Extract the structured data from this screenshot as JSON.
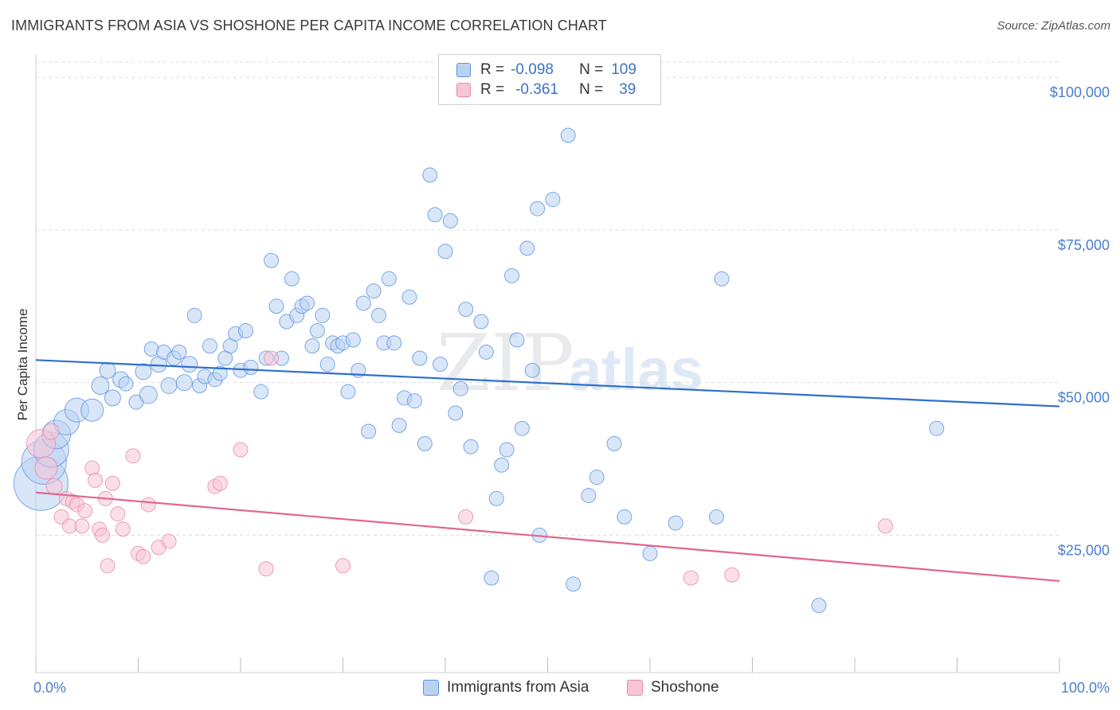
{
  "title": "IMMIGRANTS FROM ASIA VS SHOSHONE PER CAPITA INCOME CORRELATION CHART",
  "source": "Source: ZipAtlas.com",
  "watermark": {
    "zip": "ZIP",
    "atlas": "atlas"
  },
  "colors": {
    "blue": "#5b93e0",
    "blue_fill": "#b9d2f3",
    "blue_line": "#2e6fcc",
    "pink": "#e888a8",
    "pink_fill": "#f7c5d5",
    "pink_line": "#e0668f",
    "tick_text": "#4a7fd0"
  },
  "legend": {
    "rows": [
      {
        "r_label": "R =",
        "r_value": "-0.098",
        "n_label": "N =",
        "n_value": "109"
      },
      {
        "r_label": "R =",
        "r_value": "-0.361",
        "n_label": "N =",
        "n_value": "39"
      }
    ]
  },
  "bottom_legend": {
    "asia": "Immigrants from Asia",
    "shoshone": "Shoshone"
  },
  "chart_data": {
    "type": "scatter",
    "title": "IMMIGRANTS FROM ASIA VS SHOSHONE PER CAPITA INCOME CORRELATION CHART",
    "xlabel": "",
    "ylabel": "Per Capita Income",
    "xlim": [
      0,
      100
    ],
    "ylim": [
      2500,
      102500
    ],
    "x_tick_labels": [
      "0.0%",
      "100.0%"
    ],
    "y_ticks": [
      25000,
      50000,
      75000,
      100000
    ],
    "y_tick_labels": [
      "$25,000",
      "$50,000",
      "$75,000",
      "$100,000"
    ],
    "grid": true,
    "legend_position": "top-center",
    "series": [
      {
        "name": "Immigrants from Asia",
        "color": "#5b93e0",
        "trend": {
          "x": [
            0,
            100
          ],
          "y": [
            53700,
            46100
          ]
        },
        "points": [
          [
            0.5,
            33500,
            34
          ],
          [
            0.8,
            37000,
            28
          ],
          [
            1.5,
            39000,
            22
          ],
          [
            2.0,
            41500,
            18
          ],
          [
            3.0,
            43500,
            16
          ],
          [
            4.0,
            45500,
            15
          ],
          [
            5.5,
            45500,
            14
          ],
          [
            6.3,
            49500,
            11
          ],
          [
            7.0,
            52000,
            10
          ],
          [
            7.5,
            47500,
            10
          ],
          [
            8.3,
            50500,
            10
          ],
          [
            8.8,
            49800,
            9
          ],
          [
            9.8,
            46800,
            9
          ],
          [
            10.5,
            51800,
            10
          ],
          [
            11.0,
            48000,
            11
          ],
          [
            11.3,
            55500,
            9
          ],
          [
            12.0,
            53000,
            10
          ],
          [
            12.5,
            55000,
            9
          ],
          [
            13.0,
            49500,
            10
          ],
          [
            13.5,
            54000,
            9
          ],
          [
            14.0,
            55000,
            9
          ],
          [
            14.5,
            50000,
            10
          ],
          [
            15.0,
            53000,
            10
          ],
          [
            15.5,
            61000,
            9
          ],
          [
            16.0,
            49500,
            9
          ],
          [
            16.5,
            51000,
            9
          ],
          [
            17.0,
            56000,
            9
          ],
          [
            17.5,
            50500,
            9
          ],
          [
            18.0,
            51500,
            9
          ],
          [
            18.5,
            54000,
            9
          ],
          [
            19.0,
            56000,
            9
          ],
          [
            19.5,
            58000,
            9
          ],
          [
            20.0,
            52000,
            9
          ],
          [
            20.5,
            58500,
            9
          ],
          [
            21.0,
            52500,
            9
          ],
          [
            22.0,
            48500,
            9
          ],
          [
            22.5,
            54000,
            9
          ],
          [
            23.0,
            70000,
            9
          ],
          [
            23.5,
            62500,
            9
          ],
          [
            24.0,
            54000,
            9
          ],
          [
            24.5,
            60000,
            9
          ],
          [
            25.0,
            67000,
            9
          ],
          [
            25.5,
            61000,
            9
          ],
          [
            26.0,
            62500,
            9
          ],
          [
            26.5,
            63000,
            9
          ],
          [
            27.0,
            56000,
            9
          ],
          [
            27.5,
            58500,
            9
          ],
          [
            28.0,
            61000,
            9
          ],
          [
            28.5,
            53000,
            9
          ],
          [
            29.0,
            56500,
            9
          ],
          [
            29.5,
            56000,
            9
          ],
          [
            30.0,
            56500,
            9
          ],
          [
            30.5,
            48500,
            9
          ],
          [
            31.0,
            57000,
            9
          ],
          [
            31.5,
            52000,
            9
          ],
          [
            32.0,
            63000,
            9
          ],
          [
            32.5,
            42000,
            9
          ],
          [
            33.0,
            65000,
            9
          ],
          [
            33.5,
            61000,
            9
          ],
          [
            34.0,
            56500,
            9
          ],
          [
            34.5,
            67000,
            9
          ],
          [
            35.0,
            56500,
            9
          ],
          [
            35.5,
            43000,
            9
          ],
          [
            36.0,
            47500,
            9
          ],
          [
            36.5,
            64000,
            9
          ],
          [
            37.0,
            47000,
            9
          ],
          [
            37.5,
            54000,
            9
          ],
          [
            38.0,
            40000,
            9
          ],
          [
            38.5,
            84000,
            9
          ],
          [
            39.0,
            77500,
            9
          ],
          [
            39.5,
            53000,
            9
          ],
          [
            40.0,
            71500,
            9
          ],
          [
            40.5,
            76500,
            9
          ],
          [
            41.0,
            45000,
            9
          ],
          [
            41.5,
            49000,
            9
          ],
          [
            42.0,
            62000,
            9
          ],
          [
            42.5,
            39500,
            9
          ],
          [
            43.5,
            60000,
            9
          ],
          [
            44.0,
            55000,
            9
          ],
          [
            44.5,
            18000,
            9
          ],
          [
            45.0,
            31000,
            9
          ],
          [
            45.5,
            36500,
            9
          ],
          [
            46.0,
            39000,
            9
          ],
          [
            46.5,
            67500,
            9
          ],
          [
            47.0,
            57000,
            9
          ],
          [
            47.5,
            42500,
            9
          ],
          [
            48.0,
            72000,
            9
          ],
          [
            48.5,
            52000,
            9
          ],
          [
            49.0,
            78500,
            9
          ],
          [
            49.2,
            25000,
            9
          ],
          [
            50.5,
            80000,
            9
          ],
          [
            52.0,
            90500,
            9
          ],
          [
            52.5,
            17000,
            9
          ],
          [
            54.0,
            31500,
            9
          ],
          [
            54.8,
            34500,
            9
          ],
          [
            56.5,
            40000,
            9
          ],
          [
            57.5,
            28000,
            9
          ],
          [
            60.0,
            22000,
            9
          ],
          [
            62.5,
            27000,
            9
          ],
          [
            66.5,
            28000,
            9
          ],
          [
            67.0,
            67000,
            9
          ],
          [
            76.5,
            13500,
            9
          ],
          [
            88.0,
            42500,
            9
          ]
        ]
      },
      {
        "name": "Shoshone",
        "color": "#e888a8",
        "trend": {
          "x": [
            0,
            100
          ],
          "y": [
            32000,
            17500
          ]
        },
        "points": [
          [
            0.5,
            40000,
            18
          ],
          [
            1.0,
            36000,
            14
          ],
          [
            1.5,
            42000,
            10
          ],
          [
            1.8,
            33000,
            10
          ],
          [
            2.5,
            28000,
            9
          ],
          [
            3.0,
            31000,
            9
          ],
          [
            3.3,
            26500,
            9
          ],
          [
            3.6,
            30500,
            9
          ],
          [
            4.0,
            30000,
            9
          ],
          [
            4.5,
            26500,
            9
          ],
          [
            4.8,
            29000,
            9
          ],
          [
            5.5,
            36000,
            9
          ],
          [
            5.8,
            34000,
            9
          ],
          [
            6.2,
            26000,
            9
          ],
          [
            6.5,
            25000,
            9
          ],
          [
            6.8,
            31000,
            9
          ],
          [
            7.0,
            20000,
            9
          ],
          [
            7.5,
            33500,
            9
          ],
          [
            8.0,
            28500,
            9
          ],
          [
            8.5,
            26000,
            9
          ],
          [
            9.5,
            38000,
            9
          ],
          [
            10.0,
            22000,
            9
          ],
          [
            10.5,
            21500,
            9
          ],
          [
            11.0,
            30000,
            9
          ],
          [
            12.0,
            23000,
            9
          ],
          [
            13.0,
            24000,
            9
          ],
          [
            17.5,
            33000,
            9
          ],
          [
            18.0,
            33500,
            9
          ],
          [
            20.0,
            39000,
            9
          ],
          [
            22.5,
            19500,
            9
          ],
          [
            23.0,
            54000,
            9
          ],
          [
            30.0,
            20000,
            9
          ],
          [
            42.0,
            28000,
            9
          ],
          [
            64.0,
            18000,
            9
          ],
          [
            68.0,
            18500,
            9
          ],
          [
            83.0,
            26500,
            9
          ]
        ]
      }
    ]
  }
}
